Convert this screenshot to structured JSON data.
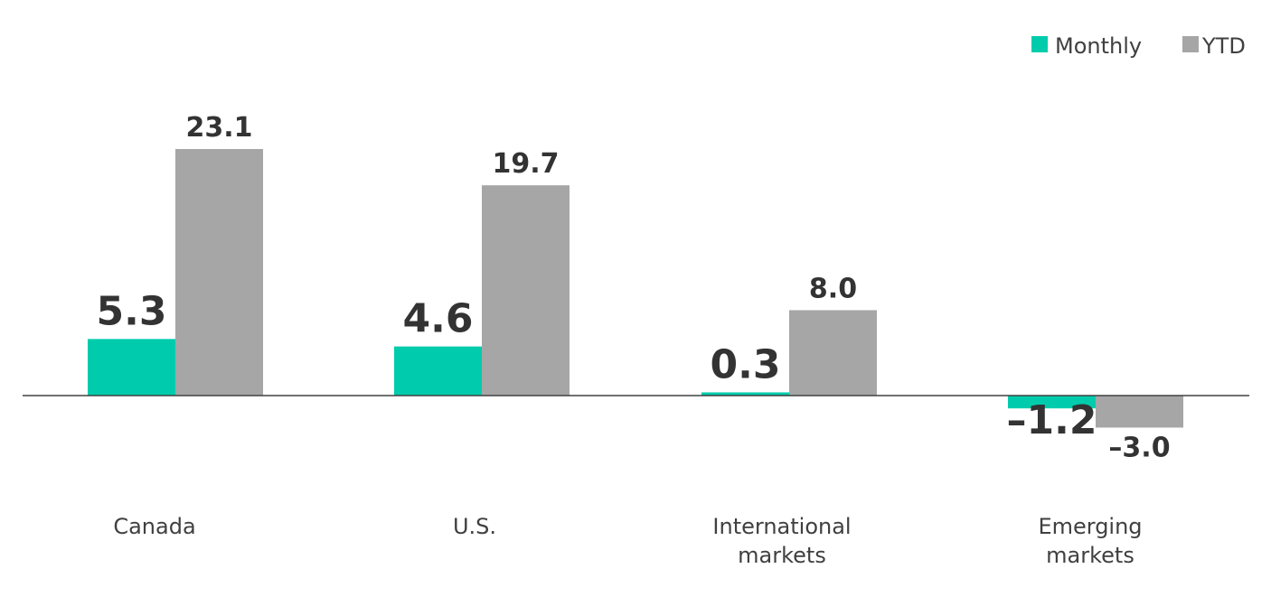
{
  "chart_data": {
    "type": "bar",
    "categories": [
      [
        "Canada"
      ],
      [
        "U.S."
      ],
      [
        "International",
        "markets"
      ],
      [
        "Emerging",
        "markets"
      ]
    ],
    "series": [
      {
        "name": "Monthly",
        "color": "#00CCAD",
        "values": [
          5.3,
          4.6,
          0.3,
          -1.2
        ],
        "labels": [
          "5.3",
          "4.6",
          "0.3",
          "–1.2"
        ]
      },
      {
        "name": "YTD",
        "color": "#A6A6A6",
        "values": [
          23.1,
          19.7,
          8.0,
          -3.0
        ],
        "labels": [
          "23.1",
          "19.7",
          "8.0",
          "–3.0"
        ]
      }
    ],
    "title": "",
    "xlabel": "",
    "ylabel": "",
    "ylim": [
      -3.0,
      23.1
    ],
    "grid": false,
    "legend_position": "top-right",
    "zero_line_color": "#404041"
  }
}
